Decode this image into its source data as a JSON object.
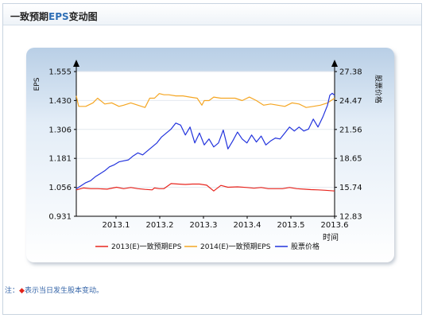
{
  "header": {
    "title_prefix": "一致预期",
    "title_eps": "EPS",
    "title_suffix": "变动图"
  },
  "note": {
    "prefix": "注：",
    "diamond": "◆",
    "text": "表示当日发生股本变动。"
  },
  "chart_data": {
    "type": "line",
    "xlabel": "时间",
    "ylabel_left": "EPS",
    "ylabel_right": "股票价格",
    "x_ticks": [
      "2013.1",
      "2013.2",
      "2013.3",
      "2013.4",
      "2013.5",
      "2013.6"
    ],
    "y_left_ticks": [
      "0.931",
      "1.056",
      "1.181",
      "1.306",
      "1.430",
      "1.555"
    ],
    "y_right_ticks": [
      "12.83",
      "15.74",
      "18.65",
      "21.56",
      "24.47",
      "27.38"
    ],
    "y_left_range": [
      0.931,
      1.555
    ],
    "y_right_range": [
      12.83,
      27.38
    ],
    "x_range": [
      0,
      5.45
    ],
    "series": [
      {
        "name": "2013(E)一致预期EPS",
        "axis": "left",
        "color": "#e8261f",
        "x": [
          0.0,
          0.15,
          0.3,
          0.45,
          0.65,
          0.85,
          1.0,
          1.15,
          1.3,
          1.45,
          1.6,
          1.65,
          1.75,
          1.85,
          2.0,
          2.15,
          2.3,
          2.45,
          2.6,
          2.75,
          2.9,
          3.05,
          3.2,
          3.4,
          3.6,
          3.75,
          3.9,
          4.05,
          4.2,
          4.35,
          4.5,
          4.65,
          4.8,
          4.95,
          5.1,
          5.25,
          5.45
        ],
        "values": [
          1.045,
          1.053,
          1.05,
          1.05,
          1.048,
          1.056,
          1.05,
          1.055,
          1.05,
          1.047,
          1.045,
          1.053,
          1.05,
          1.05,
          1.072,
          1.07,
          1.068,
          1.07,
          1.07,
          1.065,
          1.04,
          1.064,
          1.056,
          1.058,
          1.055,
          1.052,
          1.055,
          1.05,
          1.05,
          1.05,
          1.055,
          1.05,
          1.048,
          1.046,
          1.045,
          1.043,
          1.04
        ]
      },
      {
        "name": "2014(E)一致预期EPS",
        "axis": "left",
        "color": "#f5a623",
        "x": [
          0.0,
          0.05,
          0.2,
          0.35,
          0.45,
          0.6,
          0.75,
          0.9,
          1.0,
          1.15,
          1.3,
          1.45,
          1.55,
          1.65,
          1.75,
          1.85,
          1.95,
          2.1,
          2.25,
          2.4,
          2.55,
          2.65,
          2.7,
          2.8,
          2.9,
          3.05,
          3.2,
          3.35,
          3.5,
          3.65,
          3.8,
          3.95,
          4.1,
          4.25,
          4.4,
          4.55,
          4.7,
          4.85,
          5.0,
          5.15,
          5.3,
          5.45
        ],
        "values": [
          1.45,
          1.405,
          1.405,
          1.42,
          1.44,
          1.415,
          1.42,
          1.405,
          1.41,
          1.42,
          1.41,
          1.4,
          1.44,
          1.44,
          1.46,
          1.455,
          1.455,
          1.45,
          1.45,
          1.445,
          1.44,
          1.41,
          1.43,
          1.43,
          1.445,
          1.44,
          1.44,
          1.44,
          1.43,
          1.445,
          1.43,
          1.41,
          1.415,
          1.41,
          1.405,
          1.42,
          1.415,
          1.4,
          1.405,
          1.41,
          1.42,
          1.44
        ]
      },
      {
        "name": "股票价格",
        "axis": "right",
        "color": "#2233dd",
        "x": [
          0.0,
          0.1,
          0.2,
          0.3,
          0.4,
          0.5,
          0.6,
          0.7,
          0.8,
          0.9,
          1.0,
          1.1,
          1.2,
          1.3,
          1.4,
          1.5,
          1.6,
          1.7,
          1.8,
          1.9,
          2.0,
          2.1,
          2.2,
          2.3,
          2.4,
          2.5,
          2.6,
          2.7,
          2.8,
          2.9,
          3.0,
          3.1,
          3.2,
          3.3,
          3.4,
          3.5,
          3.6,
          3.7,
          3.8,
          3.9,
          4.0,
          4.1,
          4.2,
          4.3,
          4.4,
          4.5,
          4.6,
          4.7,
          4.8,
          4.9,
          5.0,
          5.1,
          5.2,
          5.3,
          5.35,
          5.4,
          5.45
        ],
        "values": [
          15.6,
          15.9,
          16.2,
          16.4,
          16.8,
          17.1,
          17.4,
          17.8,
          18.0,
          18.3,
          18.4,
          18.5,
          18.9,
          19.2,
          19.0,
          19.4,
          19.8,
          20.2,
          20.8,
          21.2,
          21.6,
          22.2,
          22.0,
          21.0,
          21.8,
          20.2,
          21.2,
          20.0,
          20.6,
          19.8,
          20.2,
          21.5,
          19.6,
          20.4,
          21.3,
          20.6,
          20.2,
          21.0,
          20.3,
          20.9,
          20.0,
          20.4,
          20.7,
          20.6,
          21.2,
          21.8,
          21.4,
          21.8,
          21.4,
          21.6,
          22.6,
          21.8,
          22.8,
          24.0,
          25.0,
          25.2,
          25.0
        ]
      }
    ],
    "legend": "bottom"
  }
}
